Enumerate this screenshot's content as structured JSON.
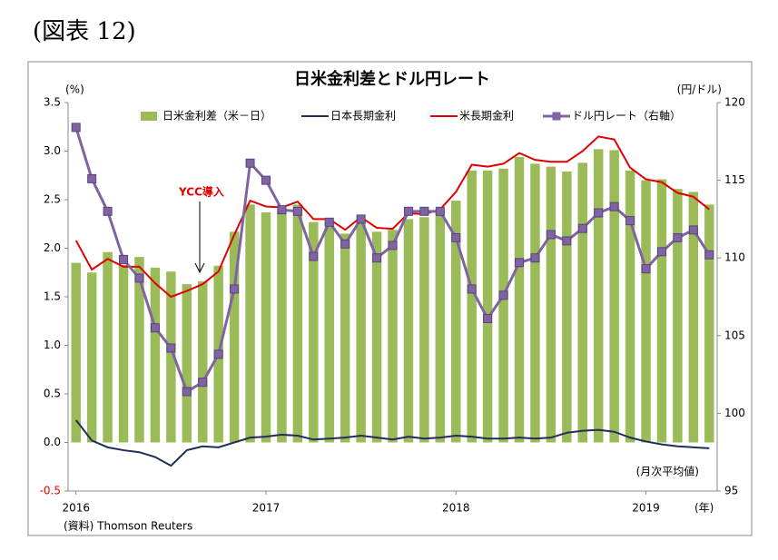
{
  "caption": "(図表 12)",
  "chart_data": {
    "type": "bar-line",
    "title": "日米金利差とドル円レート",
    "y_label": "(%)",
    "y2_label": "(円/ドル)",
    "note": "(月次平均値)",
    "x_unit": "(年)",
    "source": "(資料) Thomson Reuters",
    "annotations": [
      {
        "text": "YCC導入"
      }
    ],
    "categories": [
      "2016",
      null,
      null,
      null,
      null,
      null,
      null,
      null,
      null,
      null,
      null,
      null,
      "2017",
      null,
      null,
      null,
      null,
      null,
      null,
      null,
      null,
      null,
      null,
      null,
      "2018",
      null,
      null,
      null,
      null,
      null,
      null,
      null,
      null,
      null,
      null,
      null,
      "2019",
      null,
      null,
      null,
      null
    ],
    "series": [
      {
        "name": "日米金利差（米－日）",
        "type": "bar",
        "color": "#9bbb59",
        "values": [
          1.85,
          1.75,
          1.96,
          1.83,
          1.91,
          1.8,
          1.76,
          1.63,
          1.66,
          1.82,
          2.17,
          2.45,
          2.37,
          2.4,
          2.45,
          2.27,
          2.28,
          2.15,
          2.3,
          2.17,
          2.19,
          2.3,
          2.32,
          2.38,
          2.49,
          2.8,
          2.8,
          2.82,
          2.94,
          2.87,
          2.84,
          2.79,
          2.88,
          3.02,
          3.01,
          2.8,
          2.7,
          2.71,
          2.61,
          2.58,
          2.45
        ]
      },
      {
        "name": "日本長期金利",
        "type": "line",
        "color": "#1f2d5a",
        "values": [
          0.23,
          0.02,
          -0.05,
          -0.08,
          -0.1,
          -0.15,
          -0.24,
          -0.08,
          -0.04,
          -0.05,
          0.0,
          0.05,
          0.06,
          0.08,
          0.07,
          0.03,
          0.04,
          0.05,
          0.07,
          0.05,
          0.03,
          0.06,
          0.04,
          0.05,
          0.07,
          0.06,
          0.04,
          0.04,
          0.05,
          0.04,
          0.05,
          0.1,
          0.12,
          0.13,
          0.11,
          0.05,
          0.01,
          -0.02,
          -0.04,
          -0.05,
          -0.06
        ]
      },
      {
        "name": "米長期金利",
        "type": "line",
        "color": "#e00000",
        "values": [
          2.08,
          1.78,
          1.89,
          1.81,
          1.81,
          1.64,
          1.5,
          1.56,
          1.63,
          1.76,
          2.14,
          2.49,
          2.43,
          2.42,
          2.48,
          2.3,
          2.3,
          2.19,
          2.32,
          2.21,
          2.2,
          2.36,
          2.35,
          2.4,
          2.58,
          2.86,
          2.84,
          2.87,
          2.98,
          2.91,
          2.89,
          2.89,
          3.0,
          3.15,
          3.12,
          2.83,
          2.71,
          2.68,
          2.57,
          2.53,
          2.4
        ]
      },
      {
        "name": "ドル円レート（右軸）",
        "type": "line",
        "marker": "square",
        "axis": "y2",
        "color": "#8064a2",
        "values": [
          118.4,
          115.1,
          113.0,
          109.9,
          108.7,
          105.5,
          104.2,
          101.4,
          102.0,
          103.8,
          108.0,
          116.1,
          115.0,
          113.1,
          113.0,
          110.1,
          112.3,
          110.9,
          112.5,
          110.0,
          110.8,
          113.0,
          113.0,
          113.0,
          111.3,
          108.0,
          106.1,
          107.6,
          109.7,
          110.0,
          111.5,
          111.1,
          111.9,
          112.9,
          113.3,
          112.4,
          109.3,
          110.4,
          111.3,
          111.8,
          110.2
        ]
      }
    ],
    "ylim": [
      -0.5,
      3.5
    ],
    "yticks": [
      -0.5,
      {
        "value": 0,
        "label": "0.0"
      },
      0.5,
      {
        "value": 1,
        "label": "1.0"
      },
      1.5,
      {
        "value": 2,
        "label": "2.0"
      },
      2.5,
      {
        "value": 3,
        "label": "3.0"
      },
      3.5
    ],
    "y2lim": [
      95,
      120
    ],
    "y2ticks": [
      95,
      100,
      105,
      110,
      115,
      120
    ],
    "grid": false,
    "legend": "top"
  }
}
